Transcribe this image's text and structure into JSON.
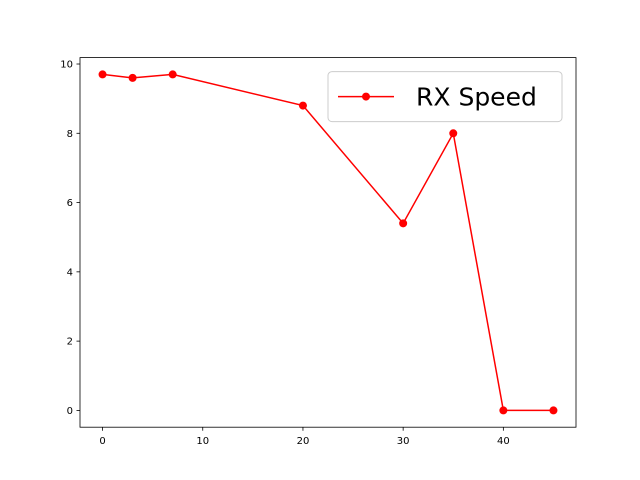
{
  "chart_data": {
    "type": "line",
    "x": [
      0,
      3,
      7,
      20,
      30,
      35,
      40,
      45
    ],
    "series": [
      {
        "name": "RX Speed",
        "color": "#ff0000",
        "values": [
          9.7,
          9.6,
          9.7,
          8.8,
          5.4,
          8.0,
          0,
          0
        ]
      }
    ],
    "xlim": [
      -2.25,
      47.25
    ],
    "xticks": [
      0,
      10,
      20,
      30,
      40
    ],
    "ylim": [
      -0.485,
      10.185
    ],
    "yticks": [
      0,
      2,
      4,
      6,
      8,
      10
    ],
    "grid": false,
    "legend": "upper-right"
  }
}
